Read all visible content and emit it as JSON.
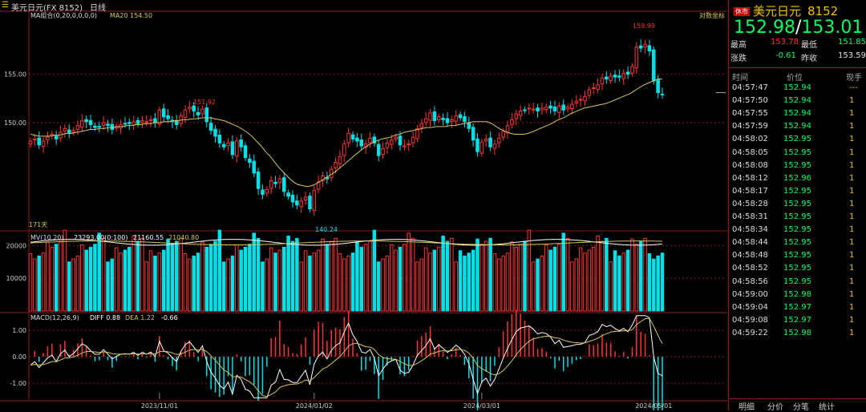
{
  "topbar": {
    "menu_icon": "menu-icon",
    "instrument": "美元日元(FX 8152)",
    "period": "日线"
  },
  "main_panel": {
    "legend_title": "MA组合(0,20,0,0,0,0)",
    "ma20_label": "MA20 154.50",
    "log_coord_label": "对数坐标",
    "days_label": "171天",
    "high_label": "159.99",
    "low_label": "140.24",
    "prev_peak_label": "151.92"
  },
  "mv_panel": {
    "legend": "MV(10,20)",
    "vol_label": "23293.00(0:100)",
    "mv10_label": "21160.55",
    "mv20_label": "21040.80"
  },
  "macd_panel": {
    "legend": "MACD(12,26,9)",
    "diff_label": "DIFF 0.88",
    "dea_label": "DEA 1.22",
    "macd_label": "-0.66"
  },
  "colors": {
    "up": "#ff3333",
    "down": "#00e0e8",
    "ma": "#d4c85a",
    "grid": "#8a1a1a",
    "bid": "#00ff66"
  },
  "sidebar": {
    "tag": "休市",
    "name": "美元日元",
    "code": "8152",
    "bid": "152.98",
    "ask": "153.01",
    "high_label": "最高",
    "high_value": "153.78",
    "low_label": "最低",
    "low_value": "151.85",
    "change_label": "涨跌",
    "change_value": "-0.61",
    "prev_label": "昨收",
    "prev_value": "153.59",
    "col_time": "时间",
    "col_price": "价位",
    "col_vol": "现手",
    "ticks": [
      {
        "time": "04:57:47",
        "price": "152.94",
        "vol": "---"
      },
      {
        "time": "04:57:50",
        "price": "152.94",
        "vol": "1"
      },
      {
        "time": "04:57:55",
        "price": "152.94",
        "vol": "1"
      },
      {
        "time": "04:57:59",
        "price": "152.94",
        "vol": "1"
      },
      {
        "time": "04:58:02",
        "price": "152.95",
        "vol": "1"
      },
      {
        "time": "04:58:05",
        "price": "152.95",
        "vol": "1"
      },
      {
        "time": "04:58:08",
        "price": "152.95",
        "vol": "1"
      },
      {
        "time": "04:58:12",
        "price": "152.96",
        "vol": "1"
      },
      {
        "time": "04:58:17",
        "price": "152.95",
        "vol": "1"
      },
      {
        "time": "04:58:28",
        "price": "152.95",
        "vol": "1"
      },
      {
        "time": "04:58:31",
        "price": "152.95",
        "vol": "1"
      },
      {
        "time": "04:58:34",
        "price": "152.95",
        "vol": "1"
      },
      {
        "time": "04:58:44",
        "price": "152.95",
        "vol": "1"
      },
      {
        "time": "04:58:48",
        "price": "152.95",
        "vol": "1"
      },
      {
        "time": "04:58:52",
        "price": "152.95",
        "vol": "1"
      },
      {
        "time": "04:58:56",
        "price": "152.95",
        "vol": "1"
      },
      {
        "time": "04:59:00",
        "price": "152.98",
        "vol": "1"
      },
      {
        "time": "04:59:04",
        "price": "152.97",
        "vol": "1"
      },
      {
        "time": "04:59:08",
        "price": "152.97",
        "vol": "1"
      },
      {
        "time": "04:59:22",
        "price": "152.98",
        "vol": "1"
      }
    ],
    "bottom_tabs": [
      "明细",
      "分价",
      "分笔",
      "统计"
    ]
  },
  "chart_data": {
    "type": "candlestick",
    "price_ticks": [
      155.0,
      150.0
    ],
    "price_tick_labels": [
      "155.00",
      "150.00"
    ],
    "price_range": [
      139.0,
      161.5
    ],
    "volume_ticks": [
      20000,
      10000
    ],
    "volume_tick_labels": [
      "20000",
      "10000"
    ],
    "volume_range": [
      0,
      24000
    ],
    "macd_ticks": [
      1.0,
      0.0,
      -1.0
    ],
    "macd_tick_labels": [
      "1.00",
      "0.00",
      "-1.00"
    ],
    "macd_range": [
      -1.6,
      1.6
    ],
    "x_labels": [
      {
        "label": "2023/11/01",
        "index": 30
      },
      {
        "label": "2024/01/02",
        "index": 66
      },
      {
        "label": "2024/03/01",
        "index": 105
      },
      {
        "label": "2024/05/01",
        "index": 145
      }
    ],
    "closes": [
      148.1,
      148.3,
      147.7,
      148.1,
      148.5,
      148.8,
      148.3,
      149.0,
      149.4,
      148.9,
      149.2,
      149.7,
      150.2,
      150.1,
      149.8,
      149.5,
      149.6,
      150.0,
      149.7,
      149.3,
      149.6,
      149.8,
      149.9,
      149.9,
      150.1,
      149.9,
      150.2,
      150.1,
      150.3,
      150.0,
      151.3,
      150.6,
      150.4,
      150.1,
      149.8,
      150.7,
      151.3,
      151.6,
      151.2,
      150.8,
      151.4,
      150.1,
      149.2,
      148.6,
      147.9,
      147.5,
      147.9,
      146.7,
      148.1,
      147.5,
      146.4,
      145.9,
      144.8,
      143.2,
      142.6,
      143.1,
      144.0,
      143.7,
      144.2,
      142.9,
      142.4,
      141.8,
      141.5,
      141.9,
      142.3,
      141.1,
      143.0,
      143.9,
      144.5,
      144.2,
      145.2,
      145.9,
      146.5,
      147.8,
      148.9,
      148.3,
      148.1,
      147.6,
      147.8,
      148.4,
      147.9,
      146.6,
      147.3,
      147.9,
      148.2,
      148.5,
      147.7,
      147.6,
      147.8,
      148.5,
      149.4,
      149.9,
      150.4,
      151.0,
      150.2,
      150.6,
      150.3,
      150.0,
      150.3,
      150.7,
      150.5,
      150.1,
      149.4,
      148.2,
      147.0,
      148.0,
      148.3,
      147.5,
      147.8,
      148.4,
      149.1,
      149.7,
      150.3,
      150.9,
      151.2,
      151.3,
      151.5,
      151.4,
      151.2,
      151.5,
      151.6,
      151.5,
      151.2,
      151.7,
      151.3,
      151.6,
      151.9,
      152.2,
      152.4,
      152.7,
      153.4,
      153.6,
      153.9,
      154.6,
      154.5,
      154.8,
      154.7,
      154.7,
      155.1,
      155.0,
      155.8,
      157.8,
      157.7,
      158.1,
      157.4,
      154.3,
      153.1,
      152.9
    ],
    "ma20": [
      148.8,
      148.7,
      148.6,
      148.6,
      148.6,
      148.7,
      148.7,
      148.8,
      148.9,
      148.9,
      149.0,
      149.1,
      149.2,
      149.3,
      149.3,
      149.4,
      149.4,
      149.5,
      149.5,
      149.6,
      149.6,
      149.7,
      149.7,
      149.8,
      149.8,
      149.9,
      149.9,
      150.0,
      150.0,
      150.1,
      150.1,
      150.2,
      150.2,
      150.3,
      150.3,
      150.4,
      150.4,
      150.5,
      150.5,
      150.5,
      150.4,
      150.3,
      150.2,
      150.0,
      149.8,
      149.6,
      149.3,
      149.0,
      148.6,
      148.1,
      147.6,
      147.0,
      146.5,
      145.9,
      145.3,
      144.8,
      144.3,
      143.9,
      143.6,
      143.5,
      143.4,
      143.5,
      143.7,
      144.0,
      144.3,
      144.6,
      144.9,
      145.3,
      145.7,
      146.1,
      146.5,
      146.9,
      147.3,
      147.6,
      147.9,
      148.1,
      148.3,
      148.4,
      148.5,
      148.7,
      148.8,
      149.0,
      149.1,
      149.2,
      149.3,
      149.4,
      149.5,
      149.5,
      149.6,
      149.6,
      149.6,
      149.7,
      149.7,
      149.8,
      149.9,
      150.0,
      150.1,
      150.1,
      150.1,
      150.1,
      149.9,
      149.6,
      149.3,
      149.1,
      148.9,
      148.8,
      148.8,
      148.8,
      148.9,
      149.1,
      149.3,
      149.5,
      149.7,
      149.9,
      150.2,
      150.4,
      150.6,
      150.9,
      151.1,
      151.3,
      151.5,
      151.6,
      151.7,
      151.8,
      151.9,
      152.0,
      152.2,
      152.4,
      152.6,
      152.8,
      153.0,
      153.3,
      153.6,
      153.9,
      154.1,
      154.3,
      154.5,
      154.5
    ]
  }
}
